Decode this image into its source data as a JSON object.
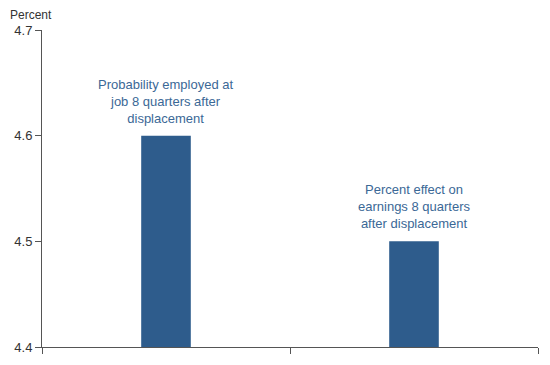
{
  "chart_data": {
    "type": "bar",
    "ylabel": "Percent",
    "categories": [
      "Probability employed at job 8 quarters after displacement",
      "Percent effect on earnings 8 quarters after displacement"
    ],
    "values": [
      4.6,
      4.5
    ],
    "color": "#2e5c8c",
    "ylim": [
      4.4,
      4.7
    ],
    "yticks": [
      4.4,
      4.5,
      4.6,
      4.7
    ],
    "grid": false,
    "tick_labels": "y"
  }
}
